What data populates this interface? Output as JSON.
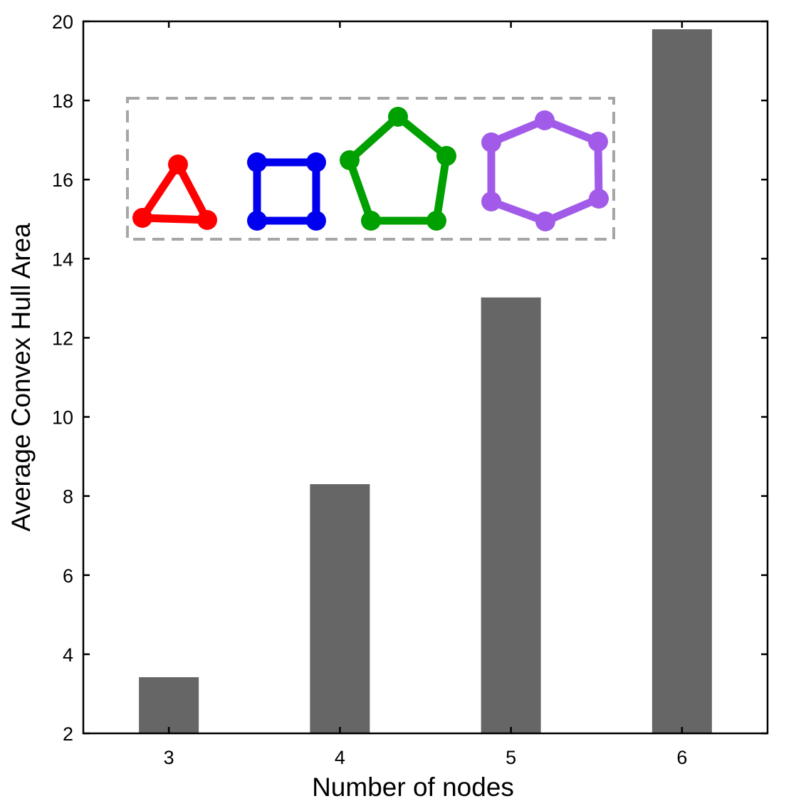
{
  "chart_data": {
    "type": "bar",
    "xlabel": "Number of nodes",
    "ylabel": "Average Convex Hull Area",
    "categories": [
      "3",
      "4",
      "5",
      "6"
    ],
    "values": [
      3.42,
      8.3,
      13.02,
      19.8
    ],
    "ylim": [
      2,
      20
    ],
    "yticks": [
      2,
      4,
      6,
      8,
      10,
      12,
      14,
      16,
      18,
      20
    ],
    "bar_color": "#666666",
    "grid": false,
    "legend": {
      "placement": "top-center",
      "border": "dashed-gray",
      "items": [
        {
          "icon": "triangle-graph-icon",
          "nodes": 3,
          "color": "#ff0000"
        },
        {
          "icon": "square-graph-icon",
          "nodes": 4,
          "color": "#0000ee"
        },
        {
          "icon": "pentagon-graph-icon",
          "nodes": 5,
          "color": "#00a000"
        },
        {
          "icon": "hexagon-graph-icon",
          "nodes": 6,
          "color": "#a15be8"
        }
      ]
    }
  }
}
